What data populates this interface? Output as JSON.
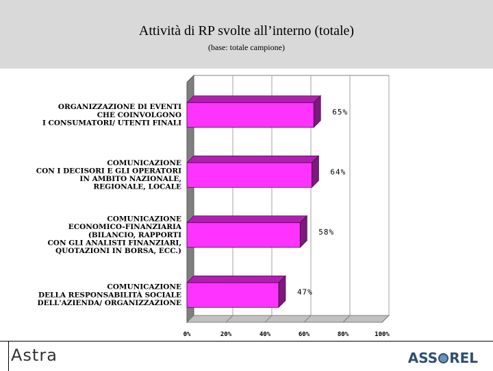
{
  "header": {
    "title": "Attività di RP svolte all’interno (totale)",
    "subtitle": "(base: totale campione)"
  },
  "footer": {
    "left_logo": "Astra",
    "right_logo": "ASSOREL"
  },
  "colors": {
    "bar_front": "#ff33ff",
    "bar_top": "#b01fb0",
    "bar_side": "#7a1a7a",
    "header_bg": "#d9d9d9"
  },
  "chart_data": {
    "type": "bar",
    "orientation": "horizontal",
    "categories": [
      [
        "ORGANIZZAZIONE DI EVENTI",
        "CHE COINVOLGONO",
        "I CONSUMATORI/ UTENTI FINALI"
      ],
      [
        "COMUNICAZIONE",
        "CON I DECISORI E GLI OPERATORI",
        "IN AMBITO NAZIONALE,",
        "REGIONALE, LOCALE"
      ],
      [
        "COMUNICAZIONE",
        "ECONOMICO-FINANZIARIA",
        "(BILANCIO, RAPPORTI",
        "CON GLI ANALISTI FINANZIARI,",
        "QUOTAZIONI IN BORSA, ECC.)"
      ],
      [
        "COMUNICAZIONE",
        "DELLA RESPONSABILITÀ SOCIALE",
        "DELL'AZIENDA/ ORGANIZZAZIONE"
      ]
    ],
    "values": [
      65,
      64,
      58,
      47
    ],
    "value_labels": [
      "65%",
      "64%",
      "58%",
      "47%"
    ],
    "xlim": [
      0,
      100
    ],
    "xticks": [
      "0%",
      "20%",
      "40%",
      "60%",
      "80%",
      "100%"
    ],
    "grid": true,
    "style": "3d"
  }
}
